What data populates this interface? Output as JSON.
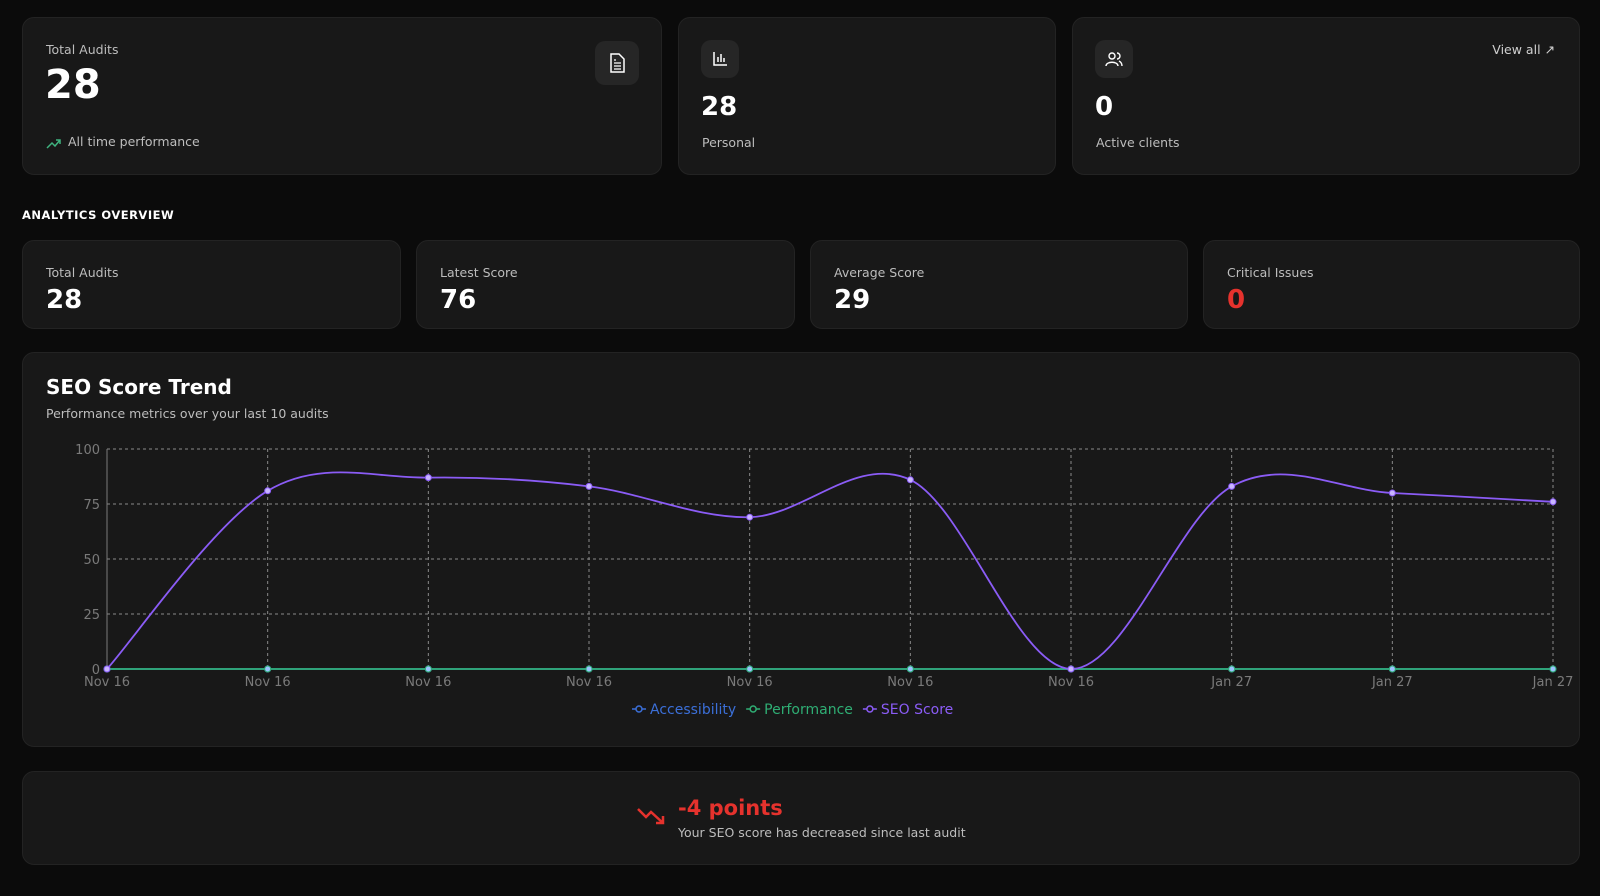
{
  "summary": {
    "total_audits": {
      "label": "Total Audits",
      "value": "28",
      "footer": "All time performance",
      "icon": "document-icon"
    },
    "personal": {
      "value": "28",
      "label": "Personal",
      "icon": "bar-chart-icon"
    },
    "clients": {
      "value": "0",
      "label": "Active clients",
      "link": "View all ↗",
      "icon": "users-icon"
    }
  },
  "analytics": {
    "heading": "ANALYTICS OVERVIEW",
    "stats": [
      {
        "label": "Total Audits",
        "value": "28"
      },
      {
        "label": "Latest Score",
        "value": "76"
      },
      {
        "label": "Average Score",
        "value": "29"
      },
      {
        "label": "Critical Issues",
        "value": "0"
      }
    ]
  },
  "colors": {
    "accessibility": "#3b6fd8",
    "performance": "#2fae74",
    "seo": "#8b5cf6",
    "critical": "#e5322d"
  },
  "chart_data": {
    "type": "line",
    "title": "SEO Score Trend",
    "subtitle": "Performance metrics over your last 10 audits",
    "categories": [
      "Nov 16",
      "Nov 16",
      "Nov 16",
      "Nov 16",
      "Nov 16",
      "Nov 16",
      "Nov 16",
      "Jan 27",
      "Jan 27",
      "Jan 27"
    ],
    "yticks": [
      0,
      25,
      50,
      75,
      100
    ],
    "ylim": [
      0,
      100
    ],
    "grid": true,
    "legend": "bottom",
    "series": [
      {
        "name": "Accessibility",
        "values": [
          0,
          0,
          0,
          0,
          0,
          0,
          0,
          0,
          0,
          0
        ]
      },
      {
        "name": "Performance",
        "values": [
          0,
          0,
          0,
          0,
          0,
          0,
          0,
          0,
          0,
          0
        ]
      },
      {
        "name": "SEO Score",
        "values": [
          0,
          81,
          87,
          83,
          69,
          86,
          0,
          83,
          80,
          76
        ]
      }
    ]
  },
  "trend": {
    "change": "-4 points",
    "message": "Your SEO score has decreased since last audit",
    "icon": "trending-down-icon"
  }
}
